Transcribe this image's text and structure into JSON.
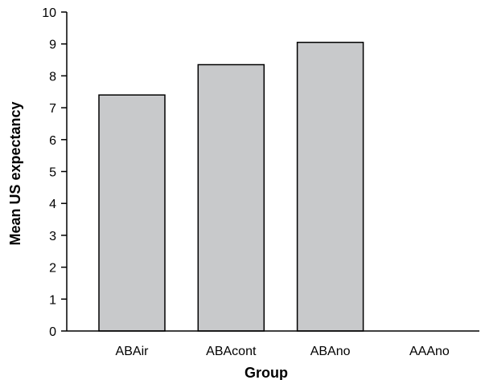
{
  "chart_data": {
    "type": "bar",
    "title": "",
    "xlabel": "Group",
    "ylabel": "Mean US expectancy",
    "categories": [
      "ABAir",
      "ABAcont",
      "ABAno",
      "AAAno"
    ],
    "values": [
      7.4,
      8.35,
      9.05,
      0
    ],
    "ylim": [
      0,
      10
    ],
    "yticks": [
      "0",
      "1",
      "2",
      "3",
      "4",
      "5",
      "6",
      "7",
      "8",
      "9",
      "10"
    ],
    "grid": false,
    "legend": "none",
    "colors": {
      "bar_fill": "#c8c9cb",
      "bar_stroke": "#000000",
      "axis": "#000000"
    }
  }
}
